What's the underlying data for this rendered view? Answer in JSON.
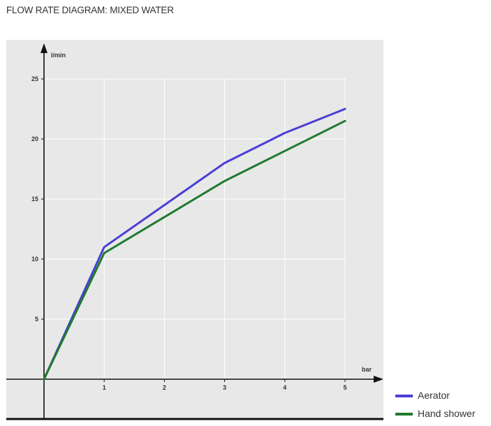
{
  "title": "FLOW RATE DIAGRAM: MIXED WATER",
  "chart_data": {
    "type": "line",
    "title": "FLOW RATE DIAGRAM: MIXED WATER",
    "xlabel": "bar",
    "ylabel": "l/min",
    "x": [
      0,
      1,
      2,
      3,
      4,
      5
    ],
    "xticks": [
      "1",
      "2",
      "3",
      "4",
      "5"
    ],
    "yticks": [
      "5",
      "10",
      "15",
      "20",
      "25"
    ],
    "xlim": [
      0,
      5
    ],
    "ylim": [
      0,
      25
    ],
    "grid": true,
    "legend_position": "bottom-right",
    "plot_background": "#e8e8e8",
    "series": [
      {
        "name": "Aerator",
        "color": "#4a3fd4",
        "values": [
          0,
          11.0,
          14.5,
          18.0,
          20.5,
          22.5
        ]
      },
      {
        "name": "Hand shower",
        "color": "#1f7a2e",
        "values": [
          0,
          10.5,
          13.5,
          16.5,
          19.0,
          21.5
        ]
      }
    ]
  }
}
